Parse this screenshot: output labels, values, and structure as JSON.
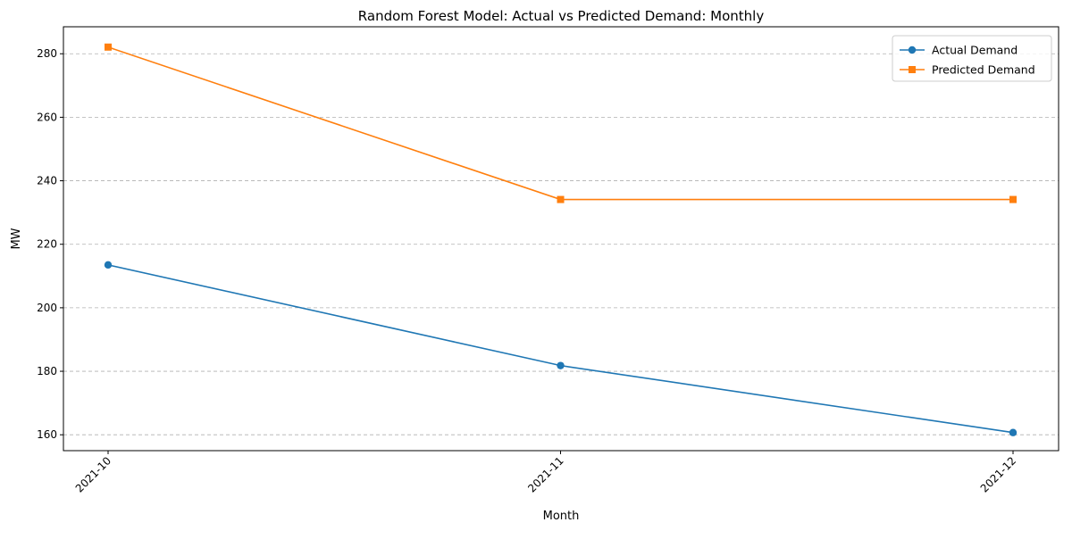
{
  "chart_data": {
    "type": "line",
    "title": "Random Forest  Model: Actual vs Predicted Demand: Monthly",
    "xlabel": "Month",
    "ylabel": "MW",
    "categories": [
      "2021-10",
      "2021-11",
      "2021-12"
    ],
    "series": [
      {
        "name": "Actual Demand",
        "values": [
          213.5,
          181.8,
          160.7
        ],
        "color": "#1f77b4",
        "marker": "circle"
      },
      {
        "name": "Predicted Demand",
        "values": [
          282.1,
          234.1,
          234.1
        ],
        "color": "#ff7f0e",
        "marker": "square"
      }
    ],
    "ylim": [
      155,
      288.5
    ],
    "yticks": [
      160,
      180,
      200,
      220,
      240,
      260,
      280
    ],
    "grid": "y-dashed",
    "legend_position": "top-right",
    "xtick_rotation": 45
  }
}
